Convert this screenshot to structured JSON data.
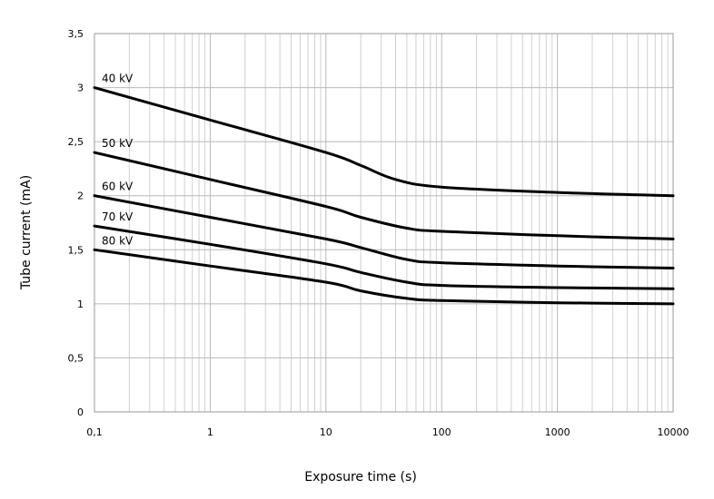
{
  "chart_data": {
    "type": "line",
    "title": "",
    "xlabel": "Exposure time (s)",
    "ylabel": "Tube current (mA)",
    "x_scale": "log",
    "xlim": [
      0.1,
      10000
    ],
    "ylim": [
      0,
      3.5
    ],
    "grid": true,
    "legend": "none",
    "x_ticks": [
      {
        "value": 0.1,
        "label": "0,1"
      },
      {
        "value": 1,
        "label": "1"
      },
      {
        "value": 10,
        "label": "10"
      },
      {
        "value": 100,
        "label": "100"
      },
      {
        "value": 1000,
        "label": "1000"
      },
      {
        "value": 10000,
        "label": "10000"
      }
    ],
    "y_ticks": [
      {
        "value": 0,
        "label": "0"
      },
      {
        "value": 0.5,
        "label": "0,5"
      },
      {
        "value": 1,
        "label": "1"
      },
      {
        "value": 1.5,
        "label": "1,5"
      },
      {
        "value": 2,
        "label": "2"
      },
      {
        "value": 2.5,
        "label": "2,5"
      },
      {
        "value": 3,
        "label": "3"
      },
      {
        "value": 3.5,
        "label": "3,5"
      }
    ],
    "series": [
      {
        "name": "40 kV",
        "x": [
          0.1,
          1,
          10,
          20,
          40,
          100,
          1000,
          10000
        ],
        "y": [
          3.0,
          2.7,
          2.4,
          2.28,
          2.15,
          2.08,
          2.03,
          2.0
        ]
      },
      {
        "name": "50 kV",
        "x": [
          0.1,
          1,
          10,
          20,
          50,
          100,
          1000,
          10000
        ],
        "y": [
          2.4,
          2.15,
          1.9,
          1.8,
          1.7,
          1.67,
          1.63,
          1.6
        ]
      },
      {
        "name": "60 kV",
        "x": [
          0.1,
          1,
          10,
          20,
          50,
          100,
          1000,
          10000
        ],
        "y": [
          2.0,
          1.8,
          1.6,
          1.52,
          1.41,
          1.38,
          1.35,
          1.33
        ]
      },
      {
        "name": "70 kV",
        "x": [
          0.1,
          1,
          10,
          20,
          50,
          100,
          1000,
          10000
        ],
        "y": [
          1.72,
          1.55,
          1.37,
          1.29,
          1.2,
          1.17,
          1.15,
          1.14
        ]
      },
      {
        "name": "80 kV",
        "x": [
          0.1,
          1,
          10,
          20,
          50,
          100,
          1000,
          10000
        ],
        "y": [
          1.5,
          1.35,
          1.2,
          1.12,
          1.05,
          1.03,
          1.01,
          1.0
        ]
      }
    ]
  }
}
